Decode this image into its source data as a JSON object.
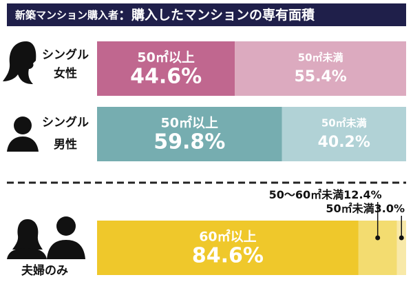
{
  "chart_data": {
    "type": "bar",
    "orientation": "horizontal",
    "stacked": true,
    "title": "新築マンション購入者",
    "subtitle": "：購入したマンションの専有面積",
    "xlim": [
      0,
      100
    ],
    "rows": [
      {
        "label": [
          "シングル",
          "女性"
        ],
        "names": [
          "50㎡以上",
          "50㎡未満"
        ],
        "values": [
          44.6,
          55.4
        ],
        "value_labels": [
          "44.6%",
          "55.4%"
        ],
        "colors": [
          "#c0678f",
          "#dcaabf"
        ]
      },
      {
        "label": [
          "シングル",
          "男性"
        ],
        "names": [
          "50㎡以上",
          "50㎡未満"
        ],
        "values": [
          59.8,
          40.2
        ],
        "value_labels": [
          "59.8%",
          "40.2%"
        ],
        "colors": [
          "#76adb0",
          "#b1d2d6"
        ]
      },
      {
        "label": [
          "夫婦のみ"
        ],
        "names": [
          "60㎡以上",
          "50～60㎡未満",
          "50㎡未満"
        ],
        "values": [
          84.6,
          12.4,
          3.0
        ],
        "value_labels": [
          "84.6%",
          "12.4%",
          "3.0%"
        ],
        "colors": [
          "#efc82b",
          "#f3dc70",
          "#f8e9a8"
        ]
      }
    ]
  }
}
